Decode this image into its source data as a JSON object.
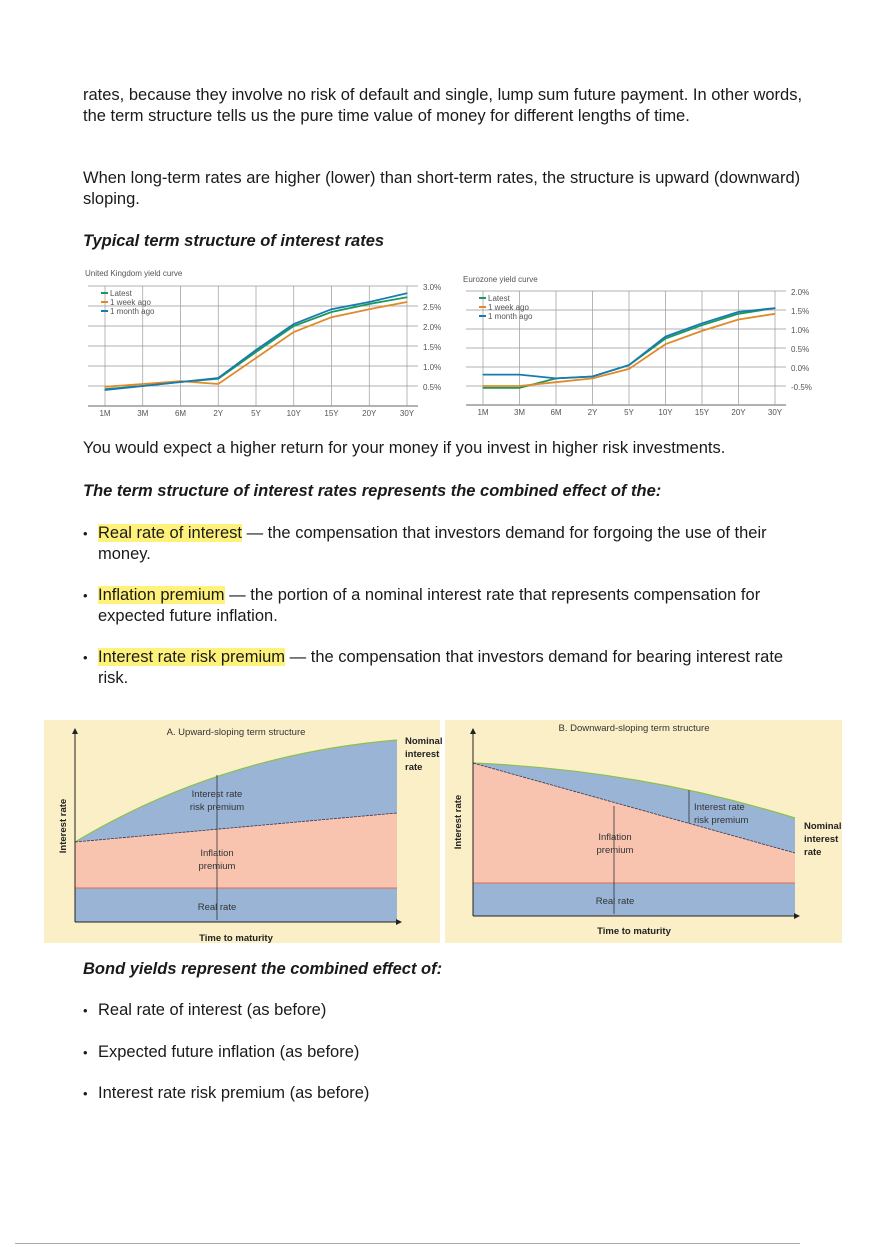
{
  "paragraphs": {
    "p1": "rates, because they involve no risk of default and single, lump sum future payment. In other words, the term structure tells us the pure time value of money for different lengths of time.",
    "p2": "When long-term rates are higher (lower) than short-term rates, the structure is upward (downward) sloping.",
    "h1": "Typical term structure of interest rates",
    "p3": "You would expect a higher return for your money if you invest in higher risk investments.",
    "h2": "The term structure of interest rates represents the combined effect of the:",
    "h3": "Bond yields represent the combined effect of:"
  },
  "bullets1": [
    {
      "term": "Real rate of interest",
      "rest": " — the compensation that investors demand for forgoing the use of their money."
    },
    {
      "term": "Inflation premium",
      "rest": " — the portion of a nominal interest rate that represents compensation for expected future inflation."
    },
    {
      "term": "Interest rate risk premium",
      "rest": " — the compensation that investors demand for bearing interest rate risk."
    }
  ],
  "bullets2": [
    "Real rate of interest (as before)",
    "Expected future inflation (as before)",
    "Interest rate risk premium (as before)"
  ],
  "highlight_color": "#fff27a",
  "chart_data": [
    {
      "type": "line",
      "title": "United Kingdom yield curve",
      "categories": [
        "1M",
        "3M",
        "6M",
        "2Y",
        "5Y",
        "10Y",
        "15Y",
        "20Y",
        "30Y"
      ],
      "yticks": [
        "3.0%",
        "2.5%",
        "2.0%",
        "1.5%",
        "1.0%",
        "0.5%"
      ],
      "ytick_values": [
        3.0,
        2.5,
        2.0,
        1.5,
        1.0,
        0.5
      ],
      "ylim": [
        0,
        3.0
      ],
      "grid": true,
      "legend": "top-left",
      "y_axis_side": "right",
      "series": [
        {
          "name": "Latest",
          "color": "#1a9a5a",
          "values": [
            0.42,
            0.5,
            0.6,
            0.68,
            1.35,
            2.0,
            2.35,
            2.55,
            2.72
          ]
        },
        {
          "name": "1 week ago",
          "color": "#e08a2a",
          "values": [
            0.48,
            0.55,
            0.62,
            0.55,
            1.2,
            1.85,
            2.22,
            2.42,
            2.6
          ]
        },
        {
          "name": "1 month ago",
          "color": "#1a7ab0",
          "values": [
            0.4,
            0.5,
            0.6,
            0.7,
            1.4,
            2.05,
            2.42,
            2.6,
            2.82
          ]
        }
      ]
    },
    {
      "type": "line",
      "title": "Eurozone yield curve",
      "categories": [
        "1M",
        "3M",
        "6M",
        "2Y",
        "5Y",
        "10Y",
        "15Y",
        "20Y",
        "30Y"
      ],
      "yticks": [
        "2.0%",
        "1.5%",
        "1.0%",
        "0.5%",
        "0.0%",
        "-0.5%"
      ],
      "ytick_values": [
        2.0,
        1.5,
        1.0,
        0.5,
        0.0,
        -0.5
      ],
      "ylim": [
        -1.0,
        2.0
      ],
      "grid": true,
      "legend": "top-left",
      "y_axis_side": "right",
      "series": [
        {
          "name": "Latest",
          "color": "#1a9a5a",
          "values": [
            -0.55,
            -0.55,
            -0.3,
            -0.25,
            0.05,
            0.75,
            1.1,
            1.4,
            1.55
          ]
        },
        {
          "name": "1 week ago",
          "color": "#e08a2a",
          "values": [
            -0.5,
            -0.5,
            -0.4,
            -0.3,
            -0.05,
            0.6,
            0.95,
            1.25,
            1.4
          ]
        },
        {
          "name": "1 month ago",
          "color": "#1a7ab0",
          "values": [
            -0.2,
            -0.2,
            -0.3,
            -0.25,
            0.05,
            0.8,
            1.15,
            1.45,
            1.55
          ]
        }
      ]
    }
  ],
  "diagramA": {
    "title": "A. Upward-sloping term structure",
    "y_label": "Interest rate",
    "x_label": "Time to maturity",
    "risk1": "Interest rate",
    "risk2": "risk premium",
    "infl1": "Inflation",
    "infl2": "premium",
    "real": "Real rate",
    "nom1": "Nominal",
    "nom2": "interest",
    "nom3": "rate"
  },
  "diagramB": {
    "title": "B. Downward-sloping term structure",
    "y_label": "Interest rate",
    "x_label": "Time to maturity",
    "risk1": "Interest rate",
    "risk2": "risk premium",
    "infl1": "Inflation",
    "infl2": "premium",
    "real": "Real rate",
    "nom1": "Nominal",
    "nom2": "interest",
    "nom3": "rate"
  },
  "diagram_colors": {
    "background": "#fbefc8",
    "blue": "#9ab4d6",
    "pink": "#f8c4b0"
  }
}
